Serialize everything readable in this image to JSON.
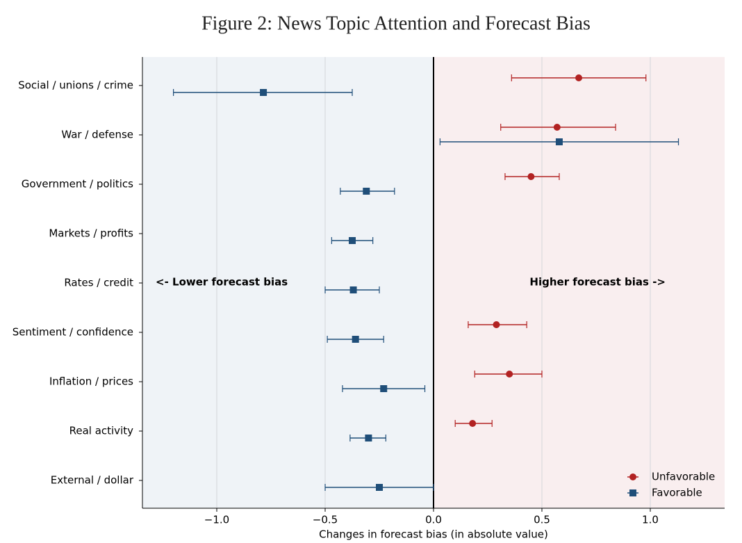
{
  "chart_data": {
    "type": "dot_errorbar",
    "orientation": "horizontal",
    "title": "Figure 2: News Topic Attention and Forecast Bias",
    "xlabel": "Changes in forecast bias (in absolute value)",
    "categories": [
      "Social / unions / crime",
      "War / defense",
      "Government / politics",
      "Markets / profits",
      "Rates / credit",
      "Sentiment / confidence",
      "Inflation / prices",
      "Real activity",
      "External / dollar"
    ],
    "series": [
      {
        "name": "Unfavorable",
        "color": "#b22222",
        "marker": "circle",
        "values": [
          0.67,
          0.57,
          0.45,
          null,
          null,
          0.29,
          0.35,
          0.18,
          null
        ],
        "lower": [
          0.36,
          0.31,
          0.33,
          null,
          null,
          0.16,
          0.19,
          0.1,
          null
        ],
        "upper": [
          0.98,
          0.84,
          0.58,
          null,
          null,
          0.43,
          0.5,
          0.27,
          null
        ]
      },
      {
        "name": "Favorable",
        "color": "#1f4e79",
        "marker": "square",
        "values": [
          -0.785,
          0.58,
          -0.31,
          -0.375,
          -0.37,
          -0.36,
          -0.23,
          -0.3,
          -0.25
        ],
        "lower": [
          -1.2,
          0.03,
          -0.43,
          -0.47,
          -0.5,
          -0.49,
          -0.42,
          -0.385,
          -0.5
        ],
        "upper": [
          -0.375,
          1.13,
          -0.18,
          -0.28,
          -0.25,
          -0.23,
          -0.04,
          -0.22,
          0
        ]
      }
    ],
    "xlim": [
      -1.343,
      1.343
    ],
    "xticks": [
      {
        "value": -1,
        "label": "−1.0"
      },
      {
        "value": -0.5,
        "label": "−0.5"
      },
      {
        "value": 0,
        "label": "0.0"
      },
      0.5,
      {
        "value": 1,
        "label": "1.0"
      }
    ],
    "grid": true,
    "annotations": [
      {
        "text": "<- Lower forecast bias",
        "color": "#1f4e79"
      },
      {
        "text": "Higher forecast bias ->",
        "color": "#b22222"
      }
    ],
    "shading": {
      "left": "#eff3f7",
      "right": "#f9eeef"
    },
    "legend": "lower right"
  }
}
